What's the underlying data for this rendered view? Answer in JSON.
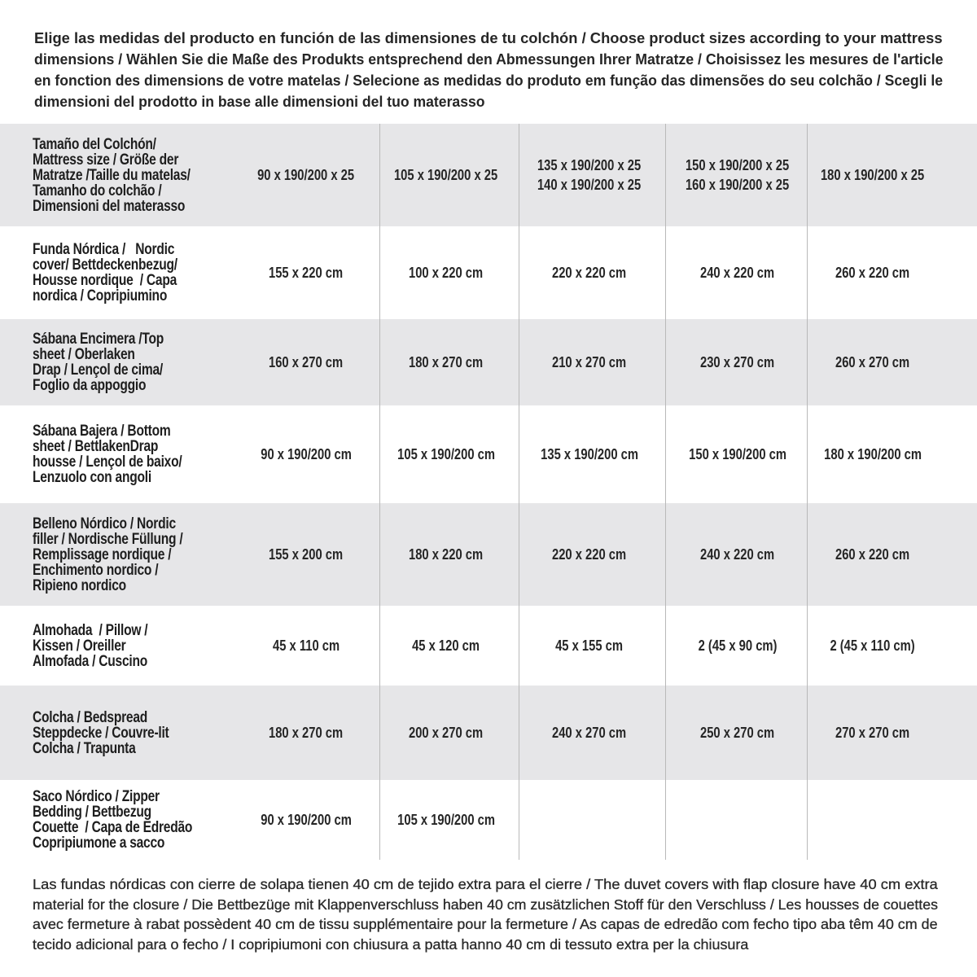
{
  "intro_lines": [
    "Elige las medidas del producto en función de las dimensiones de tu colchón / Choose product sizes according to your mattress",
    "dimensions / Wählen Sie die Maße des Produkts entsprechend den Abmessungen Ihrer Matratze / Choisissez les mesures de l'article",
    "en fonction des dimensions de votre matelas / Selecione as medidas do produto em função das dimensões do seu colchão / Scegli le",
    "dimensioni del prodotto in base alle dimensioni del tuo materasso"
  ],
  "table": {
    "rows": [
      {
        "label": "Tamaño del Colchón/\nMattress size / Größe der\nMatratze /Taille du matelas/\nTamanho do colchão /\nDimensioni del materasso",
        "values": [
          "90 x 190/200 x 25",
          "105 x 190/200 x 25",
          "135 x 190/200 x 25\n140 x 190/200 x 25",
          "150 x 190/200 x 25\n160 x 190/200 x 25",
          "180 x 190/200 x 25"
        ]
      },
      {
        "label": "Funda Nórdica /   Nordic\ncover/ Bettdeckenbezug/\nHousse nordique  / Capa\nnordica / Copripiumino",
        "values": [
          "155 x 220 cm",
          "100 x 220 cm",
          "220 x 220 cm",
          "240 x 220 cm",
          "260 x 220 cm"
        ]
      },
      {
        "label": "Sábana Encimera /Top\nsheet / Oberlaken\nDrap / Lençol de cima/\nFoglio da appoggio",
        "values": [
          "160 x 270 cm",
          "180 x 270 cm",
          "210 x 270 cm",
          "230 x 270 cm",
          "260 x 270 cm"
        ]
      },
      {
        "label": "Sábana Bajera / Bottom\nsheet / BettlakenDrap\nhousse / Lençol de baixo/\nLenzuolo con angoli",
        "values": [
          "90 x 190/200 cm",
          "105 x 190/200 cm",
          "135 x 190/200 cm",
          "150 x 190/200 cm",
          "180 x 190/200 cm"
        ]
      },
      {
        "label": "Belleno Nórdico / Nordic\nfiller / Nordische Füllung /\nRemplissage nordique /\nEnchimento nordico /\nRipieno nordico",
        "values": [
          "155 x 200 cm",
          "180 x 220 cm",
          "220 x 220 cm",
          "240 x 220 cm",
          "260 x 220 cm"
        ]
      },
      {
        "label": "Almohada  / Pillow /\nKissen / Oreiller\nAlmofada / Cuscino",
        "values": [
          "45 x 110 cm",
          "45 x 120 cm",
          "45 x 155 cm",
          "2 (45 x 90 cm)",
          "2 (45 x 110 cm)"
        ]
      },
      {
        "label": "Colcha / Bedspread\nSteppdecke / Couvre-lit\nColcha / Trapunta",
        "values": [
          "180 x 270 cm",
          "200 x 270 cm",
          "240 x 270 cm",
          "250 x 270 cm",
          "270 x 270 cm"
        ]
      },
      {
        "label": "Saco Nórdico / Zipper\nBedding / Bettbezug\nCouette  / Capa de Edredão\nCopripiumone a sacco",
        "values": [
          "90 x 190/200 cm",
          "105 x 190/200 cm",
          "",
          "",
          ""
        ]
      }
    ]
  },
  "footer_lines": [
    "Las fundas nórdicas con cierre de solapa tienen 40 cm de tejido extra para el cierre   / The duvet covers with flap closure have 40 cm extra",
    "material for the closure / Die Bettbezüge mit Klappenverschluss haben 40 cm zusätzlichen Stoff für den Verschluss / Les housses de couettes",
    "avec fermeture à rabat possèdent 40 cm de tissu supplémentaire pour la fermeture / As capas de edredão com fecho tipo aba têm 40 cm de",
    "tecido adicional para o fecho / I copripiumoni con chiusura a patta hanno 40 cm di tessuto extra per la chiusura"
  ]
}
